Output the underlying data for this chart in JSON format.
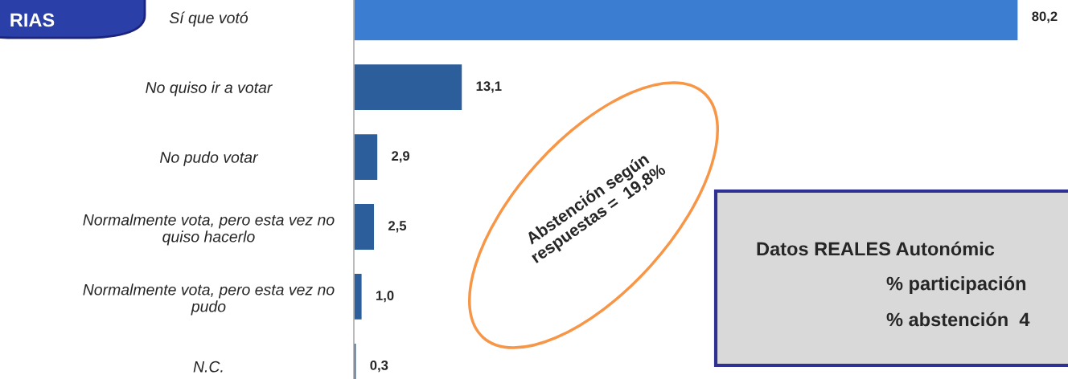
{
  "chart_data": {
    "type": "bar",
    "orientation": "horizontal",
    "categories": [
      "Sí que votó",
      "No quiso ir a votar",
      "No pudo votar",
      "Normalmente vota, pero esta vez no\nquiso hacerlo",
      "Normalmente vota, pero esta vez no\npudo",
      "N.C."
    ],
    "values": [
      80.2,
      13.1,
      2.9,
      2.5,
      1.0,
      0.3
    ],
    "colors": [
      "#3b7dd0",
      "#2d5e9c",
      "#2d5e9c",
      "#2d5e9c",
      "#2d5e9c",
      "#2d5e9c"
    ],
    "value_labels": [
      "80,2",
      "13,1",
      "2,9",
      "2,5",
      "1,0",
      "0,3"
    ],
    "annotations": [
      "RIAS",
      "Abstención según\nrespuestas =  19,8%",
      "Datos REALES Autonómic",
      "% participación",
      "% abstención  4"
    ],
    "grid": false,
    "legend": false
  }
}
